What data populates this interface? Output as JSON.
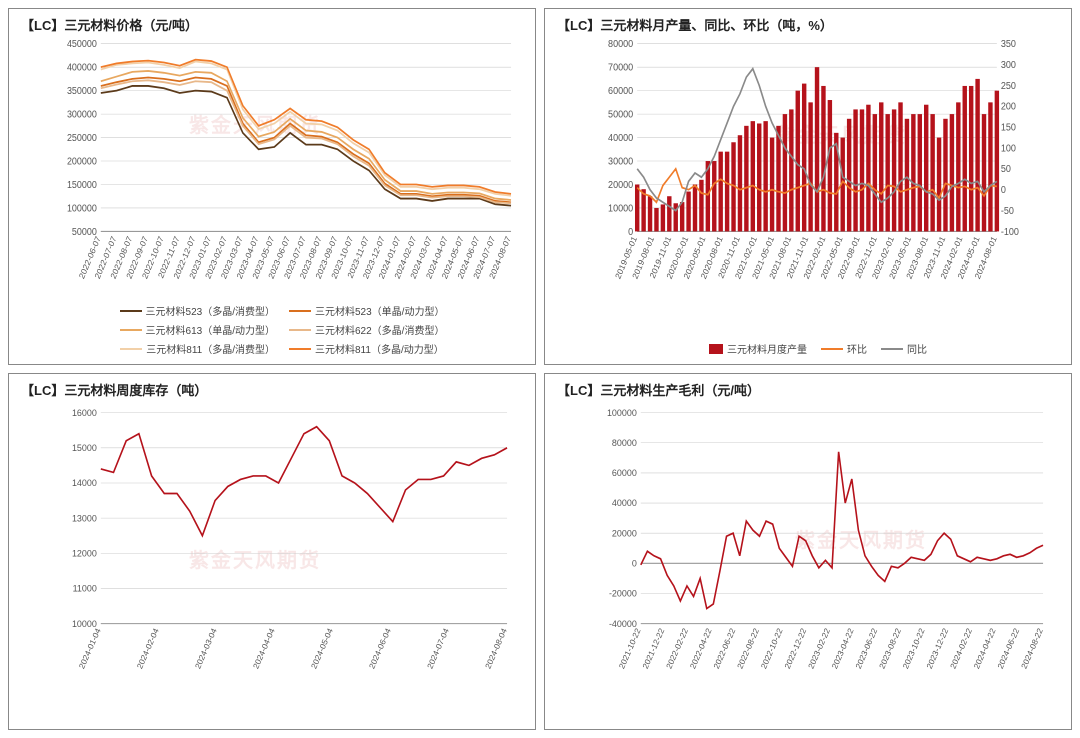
{
  "watermark_text": "紫金天风期货",
  "chart1": {
    "type": "line",
    "title": "【LC】三元材料价格（元/吨）",
    "title_fontsize": 13,
    "label_fontsize": 9,
    "ylim": [
      50000,
      450000
    ],
    "ytick_step": 50000,
    "yticks": [
      50000,
      100000,
      150000,
      200000,
      250000,
      300000,
      350000,
      400000,
      450000
    ],
    "xlabels": [
      "2022-06-07",
      "2022-07-07",
      "2022-08-07",
      "2022-09-07",
      "2022-10-07",
      "2022-11-07",
      "2022-12-07",
      "2023-01-07",
      "2023-02-07",
      "2023-03-07",
      "2023-04-07",
      "2023-05-07",
      "2023-06-07",
      "2023-07-07",
      "2023-08-07",
      "2023-09-07",
      "2023-10-07",
      "2023-11-07",
      "2023-12-07",
      "2024-01-07",
      "2024-02-07",
      "2024-03-07",
      "2024-04-07",
      "2024-05-07",
      "2024-06-07",
      "2024-07-07",
      "2024-08-07"
    ],
    "grid_color": "#d8d8d8",
    "background_color": "#ffffff",
    "series": [
      {
        "name": "三元材料523（多晶/消费型）",
        "color": "#5b3a1a",
        "values": [
          345000,
          350000,
          360000,
          360000,
          355000,
          345000,
          350000,
          348000,
          335000,
          260000,
          225000,
          230000,
          260000,
          235000,
          235000,
          225000,
          200000,
          180000,
          140000,
          120000,
          120000,
          115000,
          120000,
          120000,
          120000,
          108000,
          105000
        ]
      },
      {
        "name": "三元材料523（单晶/动力型）",
        "color": "#d96f1e",
        "values": [
          360000,
          368000,
          375000,
          378000,
          375000,
          370000,
          378000,
          375000,
          360000,
          280000,
          240000,
          250000,
          280000,
          255000,
          252000,
          240000,
          215000,
          195000,
          152000,
          130000,
          130000,
          125000,
          128000,
          128000,
          126000,
          115000,
          112000
        ]
      },
      {
        "name": "三元材料613（单晶/动力型）",
        "color": "#e8a860",
        "values": [
          370000,
          380000,
          390000,
          392000,
          388000,
          382000,
          390000,
          388000,
          370000,
          292000,
          252000,
          262000,
          290000,
          265000,
          262000,
          250000,
          225000,
          205000,
          160000,
          136000,
          136000,
          130000,
          133000,
          133000,
          131000,
          120000,
          117000
        ]
      },
      {
        "name": "三元材料622（多晶/消费型）",
        "color": "#e8b88a",
        "values": [
          355000,
          363000,
          370000,
          372000,
          368000,
          362000,
          370000,
          368000,
          350000,
          275000,
          236000,
          246000,
          275000,
          250000,
          248000,
          236000,
          210000,
          190000,
          148000,
          127000,
          127000,
          122000,
          125000,
          125000,
          123000,
          112000,
          110000
        ]
      },
      {
        "name": "三元材料811（多晶/消费型）",
        "color": "#f2d0a8",
        "values": [
          395000,
          405000,
          408000,
          410000,
          405000,
          398000,
          412000,
          408000,
          395000,
          310000,
          268000,
          280000,
          305000,
          280000,
          278000,
          265000,
          238000,
          218000,
          170000,
          145000,
          145000,
          140000,
          143000,
          143000,
          140000,
          130000,
          126000
        ]
      },
      {
        "name": "三元材料811（多晶/动力型）",
        "color": "#f07c2a",
        "values": [
          400000,
          408000,
          412000,
          414000,
          410000,
          403000,
          416000,
          413000,
          400000,
          318000,
          275000,
          288000,
          312000,
          288000,
          285000,
          272000,
          245000,
          225000,
          175000,
          150000,
          150000,
          145000,
          148000,
          148000,
          145000,
          134000,
          130000
        ]
      }
    ]
  },
  "chart2": {
    "type": "bar+line",
    "title": "【LC】三元材料月产量、同比、环比（吨，%）",
    "title_fontsize": 13,
    "label_fontsize": 9,
    "ylim_left": [
      0,
      80000
    ],
    "ytick_step_left": 10000,
    "yticks_left": [
      0,
      10000,
      20000,
      30000,
      40000,
      50000,
      60000,
      70000,
      80000
    ],
    "ylim_right": [
      -100,
      350
    ],
    "ytick_step_right": 50,
    "yticks_right": [
      -100,
      -50,
      0,
      50,
      100,
      150,
      200,
      250,
      300,
      350
    ],
    "xlabels": [
      "2019-05-01",
      "2019-08-01",
      "2019-11-01",
      "2020-02-01",
      "2020-05-01",
      "2020-08-01",
      "2020-11-01",
      "2021-02-01",
      "2021-05-01",
      "2021-08-01",
      "2021-11-01",
      "2022-02-01",
      "2022-05-01",
      "2022-08-01",
      "2022-11-01",
      "2023-02-01",
      "2023-05-01",
      "2023-08-01",
      "2023-11-01",
      "2024-02-01",
      "2024-05-01",
      "2024-08-01"
    ],
    "grid_color": "#d8d8d8",
    "bars": {
      "name": "三元材料月度产量",
      "color": "#b5121b",
      "values": [
        20000,
        18000,
        15000,
        10000,
        11500,
        15000,
        12000,
        12500,
        17000,
        20000,
        22000,
        30000,
        30000,
        34000,
        34000,
        38000,
        41000,
        45000,
        47000,
        46000,
        47000,
        40000,
        45000,
        50000,
        52000,
        60000,
        63000,
        55000,
        70000,
        62000,
        56000,
        42000,
        40000,
        48000,
        52000,
        52000,
        54000,
        50000,
        55000,
        50000,
        52000,
        55000,
        48000,
        50000,
        50000,
        54000,
        50000,
        40000,
        48000,
        50000,
        55000,
        62000,
        62000,
        65000,
        50000,
        55000,
        60000
      ]
    },
    "line1": {
      "name": "环比",
      "color": "#f07c2a",
      "values": [
        5,
        -10,
        -15,
        -30,
        10,
        30,
        50,
        5,
        0,
        10,
        -8,
        -12,
        15,
        25,
        15,
        10,
        0,
        5,
        10,
        0,
        -5,
        0,
        -5,
        -8,
        0,
        5,
        10,
        15,
        -5,
        0,
        -8,
        -10,
        20,
        5,
        -5,
        0,
        15,
        0,
        -10,
        10,
        8,
        -5,
        0,
        5,
        8,
        -5,
        0,
        -20,
        15,
        10,
        5,
        8,
        0,
        5,
        -15,
        10,
        8
      ]
    },
    "line2": {
      "name": "同比",
      "color": "#8a8a8a",
      "values": [
        50,
        30,
        0,
        -20,
        -30,
        -40,
        -50,
        -30,
        20,
        40,
        30,
        50,
        80,
        120,
        160,
        200,
        230,
        270,
        290,
        250,
        200,
        160,
        130,
        100,
        80,
        60,
        50,
        12,
        -5,
        30,
        100,
        110,
        30,
        20,
        10,
        15,
        10,
        -10,
        -30,
        -20,
        -5,
        20,
        30,
        15,
        10,
        -5,
        -10,
        -25,
        -15,
        8,
        15,
        25,
        15,
        20,
        -5,
        10,
        20
      ]
    }
  },
  "chart3": {
    "type": "line",
    "title": "【LC】三元材料周度库存（吨）",
    "title_fontsize": 13,
    "ylim": [
      10000,
      16000
    ],
    "ytick_step": 1000,
    "yticks": [
      10000,
      11000,
      12000,
      13000,
      14000,
      15000,
      16000
    ],
    "xlabels": [
      "2024-01-04",
      "2024-02-04",
      "2024-03-04",
      "2024-04-04",
      "2024-05-04",
      "2024-06-04",
      "2024-07-04",
      "2024-08-04"
    ],
    "grid_color": "#d8d8d8",
    "series": [
      {
        "name": "库存",
        "color": "#b5121b",
        "values": [
          14400,
          14300,
          15200,
          15400,
          14200,
          13700,
          13700,
          13200,
          12500,
          13500,
          13900,
          14100,
          14200,
          14200,
          14000,
          14700,
          15400,
          15600,
          15200,
          14200,
          14000,
          13700,
          13300,
          12900,
          13800,
          14100,
          14100,
          14200,
          14600,
          14500,
          14700,
          14800,
          15000
        ]
      }
    ]
  },
  "chart4": {
    "type": "line",
    "title": "【LC】三元材料生产毛利（元/吨）",
    "title_fontsize": 13,
    "ylim": [
      -40000,
      100000
    ],
    "ytick_step": 20000,
    "yticks": [
      -40000,
      -20000,
      0,
      20000,
      40000,
      60000,
      80000,
      100000
    ],
    "xlabels": [
      "2021-10-22",
      "2021-12-22",
      "2022-02-22",
      "2022-04-22",
      "2022-06-22",
      "2022-08-22",
      "2022-10-22",
      "2022-12-22",
      "2023-02-22",
      "2023-04-22",
      "2023-06-22",
      "2023-08-22",
      "2023-10-22",
      "2023-12-22",
      "2024-02-22",
      "2024-04-22",
      "2024-06-22",
      "2024-08-22"
    ],
    "grid_color": "#d8d8d8",
    "series": [
      {
        "name": "毛利",
        "color": "#b5121b",
        "values": [
          -1000,
          8000,
          5000,
          3000,
          -8000,
          -15000,
          -25000,
          -15000,
          -22000,
          -10000,
          -30000,
          -27000,
          -5000,
          18000,
          20000,
          5000,
          28000,
          22000,
          18000,
          28000,
          26000,
          10000,
          4000,
          -2000,
          18000,
          15000,
          5000,
          -3000,
          2000,
          -3000,
          74000,
          40000,
          56000,
          22000,
          5000,
          -2000,
          -8000,
          -12000,
          -2000,
          -3000,
          0,
          4000,
          3000,
          2000,
          6000,
          15000,
          20000,
          16000,
          5000,
          3000,
          1000,
          4000,
          3000,
          2000,
          3000,
          5000,
          6000,
          4000,
          5000,
          7000,
          10000,
          12000
        ]
      }
    ]
  }
}
